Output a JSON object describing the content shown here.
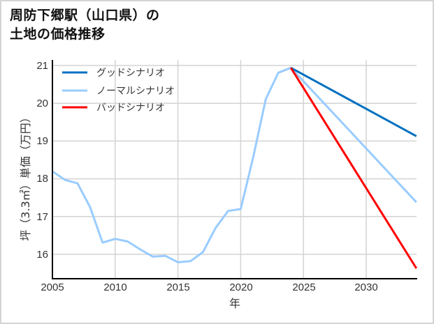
{
  "title": {
    "line1": "周防下郷駅（山口県）の",
    "line2": "土地の価格推移"
  },
  "chart_data": {
    "type": "line",
    "title": "周防下郷駅（山口県）の土地の価格推移",
    "xlabel": "年",
    "ylabel": "坪（3.3㎡）単価（万円）",
    "xlim": [
      2005,
      2034
    ],
    "ylim": [
      15.4,
      21.15
    ],
    "grid": true,
    "legend_position": "upper left",
    "x_ticks": [
      2005,
      2010,
      2015,
      2020,
      2025,
      2030
    ],
    "y_ticks": [
      16,
      17,
      18,
      19,
      20,
      21
    ],
    "series": [
      {
        "name": "グッドシナリオ",
        "color": "#0070c0",
        "x": [
          2024,
          2034
        ],
        "values": [
          20.94,
          19.13
        ]
      },
      {
        "name": "ノーマルシナリオ",
        "color": "#99ccff",
        "x": [
          2005,
          2006,
          2007,
          2008,
          2009,
          2010,
          2011,
          2012,
          2013,
          2014,
          2015,
          2016,
          2017,
          2018,
          2019,
          2020,
          2021,
          2022,
          2023,
          2024,
          2034
        ],
        "values": [
          18.2,
          17.97,
          17.88,
          17.25,
          16.31,
          16.41,
          16.34,
          16.13,
          15.94,
          15.96,
          15.79,
          15.82,
          16.06,
          16.7,
          17.15,
          17.2,
          18.58,
          20.11,
          20.81,
          20.94,
          17.38
        ]
      },
      {
        "name": "バッドシナリオ",
        "color": "#ff0000",
        "x": [
          2024,
          2034
        ],
        "values": [
          20.94,
          15.63
        ]
      }
    ]
  },
  "legend": {
    "items": [
      {
        "label": "グッドシナリオ",
        "color": "#0070c0"
      },
      {
        "label": "ノーマルシナリオ",
        "color": "#99ccff"
      },
      {
        "label": "バッドシナリオ",
        "color": "#ff0000"
      }
    ]
  },
  "axes": {
    "x_label": "年",
    "y_label": "坪（3.3㎡）単価（万円）",
    "x_tick_labels": [
      "2005",
      "2010",
      "2015",
      "2020",
      "2025",
      "2030"
    ],
    "y_tick_labels": [
      "16",
      "17",
      "18",
      "19",
      "20",
      "21"
    ]
  }
}
